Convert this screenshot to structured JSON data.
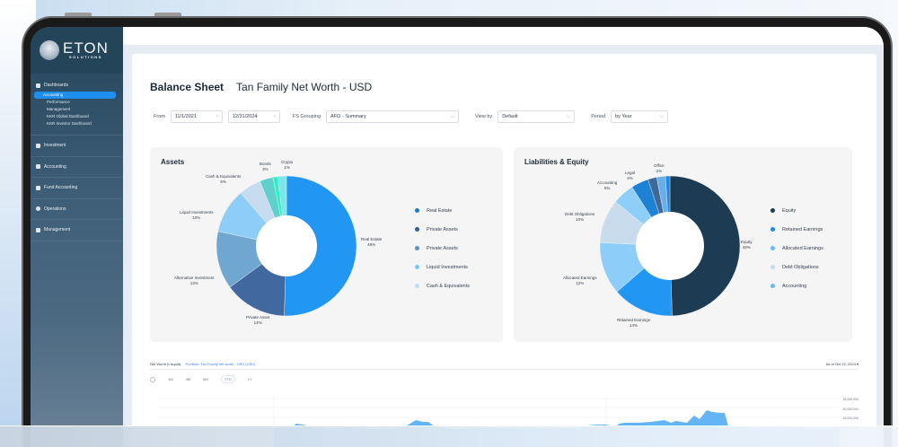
{
  "app": {
    "brand": "ETON",
    "brand_sub": "SOLUTIONS"
  },
  "sidebar": {
    "group_title": "Dashboards",
    "sub_items": [
      {
        "label": "Accounting",
        "active": true
      },
      {
        "label": "Performance",
        "active": false
      },
      {
        "label": "Management",
        "active": false
      },
      {
        "label": "KKR Global Dashboard",
        "active": false
      },
      {
        "label": "KKR Investor Dashboard",
        "active": false
      }
    ],
    "items": [
      {
        "label": "Investment",
        "icon": "chart-icon"
      },
      {
        "label": "Accounting",
        "icon": "ledger-icon"
      },
      {
        "label": "Fund Accounting",
        "icon": "document-icon"
      },
      {
        "label": "Operations",
        "icon": "gear-icon"
      },
      {
        "label": "Management",
        "icon": "people-icon"
      }
    ]
  },
  "header": {
    "title": "Balance Sheet",
    "subtitle": "Tan Family Net Worth - USD"
  },
  "filters": {
    "from_label": "From",
    "from_date": "11/1/2021",
    "to_date": "12/31/2024",
    "grouping_label": "FS Grouping",
    "grouping_value": "AFO - Summary",
    "viewby_label": "View by",
    "viewby_value": "Default",
    "period_label": "Period",
    "period_value": "by Year",
    "calendar_icon": "calendar-icon",
    "chevron_icon": "chevron-down-icon"
  },
  "assets": {
    "title": "Assets",
    "legend": [
      {
        "label": "Real Estate",
        "color": "#1f78c8"
      },
      {
        "label": "Private Assets",
        "color": "#2d5f93"
      },
      {
        "label": "Private Assets",
        "color": "#5b93c2"
      },
      {
        "label": "Liquid Investments",
        "color": "#7cc4f6"
      },
      {
        "label": "Cash & Equivalents",
        "color": "#c4dff5"
      }
    ]
  },
  "liabilities": {
    "title": "Liabilities & Equity",
    "legend": [
      {
        "label": "Equity",
        "color": "#1b3a52"
      },
      {
        "label": "Retained Earnings",
        "color": "#1e88e5"
      },
      {
        "label": "Allocated Earnings",
        "color": "#6ab8f0"
      },
      {
        "label": "Debt Obligations",
        "color": "#c6dcef"
      },
      {
        "label": "Accounting",
        "color": "#6ab8f0"
      }
    ]
  },
  "chart_data": [
    {
      "type": "pie",
      "title": "Assets",
      "categories": [
        "Real Estate",
        "Private Asset",
        "Alternative Investment",
        "Liquid Investments",
        "Cash & Equivalents",
        "Bonds",
        "Crypto"
      ],
      "values": [
        49,
        14,
        13,
        10,
        5,
        3,
        1
      ],
      "labels": [
        "49%",
        "14%",
        "13%",
        "10%",
        "5%",
        "3%",
        "1%"
      ],
      "colors": [
        "#2196f3",
        "#41689f",
        "#6fa7d1",
        "#8fcdf9",
        "#c7dcee",
        "#5fd0cc",
        "#27f2c7"
      ],
      "extra_slices": [
        {
          "color": "#7ee6ea",
          "value": 2
        }
      ]
    },
    {
      "type": "pie",
      "title": "Liabilities & Equity",
      "categories": [
        "Equity",
        "Retained Earnings",
        "Allocated Earnings",
        "Debt Obligations",
        "Accounting",
        "Legal",
        "Office"
      ],
      "values": [
        49,
        14,
        12,
        10,
        5,
        4,
        2
      ],
      "labels": [
        "49%",
        "14%",
        "12%",
        "10%",
        "5%",
        "4%",
        "2%"
      ],
      "colors": [
        "#1d3c53",
        "#2196f3",
        "#8ccdf9",
        "#c8dcee",
        "#8ecff9",
        "#1e82d4",
        "#3d6898"
      ],
      "extra_slices": [
        {
          "color": "#6ab0e8",
          "value": 2
        },
        {
          "color": "#1e88e5",
          "value": 1
        }
      ]
    },
    {
      "type": "area",
      "title": "Net Worth (Lisquid)",
      "subtitle": "Portfolio: Tan Family net worth - USD (USD)",
      "ranges": [
        "1M",
        "3M",
        "6M",
        "YTD",
        "1Y"
      ],
      "selected_range": "YTD",
      "as_of": "As of Oct 22, 2024",
      "y_ticks": [
        "25,000,000",
        "20,000,000",
        "15,000,000",
        "10,000,000"
      ],
      "color": "#64b5f6"
    }
  ],
  "bottom": {
    "title": "Net Worth (Lisquid)",
    "link": "Portfolio: Tan Family net worth - USD (USD)",
    "as_of": "As of Oct 22, 2024",
    "ranges": [
      "1M",
      "3M",
      "6M",
      "YTD",
      "1Y"
    ],
    "y_ticks": [
      "25,000,000",
      "20,000,000",
      "15,000,000",
      "10,000,000"
    ]
  }
}
